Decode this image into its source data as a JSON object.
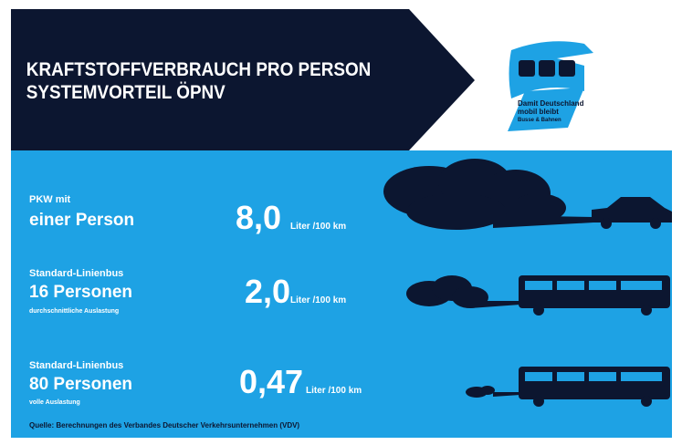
{
  "header": {
    "title_lines": [
      "KRAFTSTOFFVERBRAUCH PRO PERSON",
      "SYSTEMVORTEIL ÖPNV"
    ]
  },
  "logo": {
    "lines": [
      "Damit Deutschland",
      "mobil bleibt",
      "Busse & Bahnen"
    ]
  },
  "rows": [
    {
      "label_lines": [
        "PKW mit",
        "einer Person"
      ],
      "value": "8,0",
      "unit": "Liter /100 km"
    },
    {
      "label_lines": [
        "Standard-Linienbus",
        "16 Personen",
        "durchschnittliche Auslastung"
      ],
      "value": "2,0",
      "unit": "Liter /100 km"
    },
    {
      "label_lines": [
        "Standard-Linienbus",
        "80 Personen",
        "volle Auslastung"
      ],
      "value": "0,47",
      "unit": "Liter /100 km"
    }
  ],
  "source": "Quelle: Berechnungen des Verbandes Deutscher Verkehrsunternehmen (VDV)"
}
